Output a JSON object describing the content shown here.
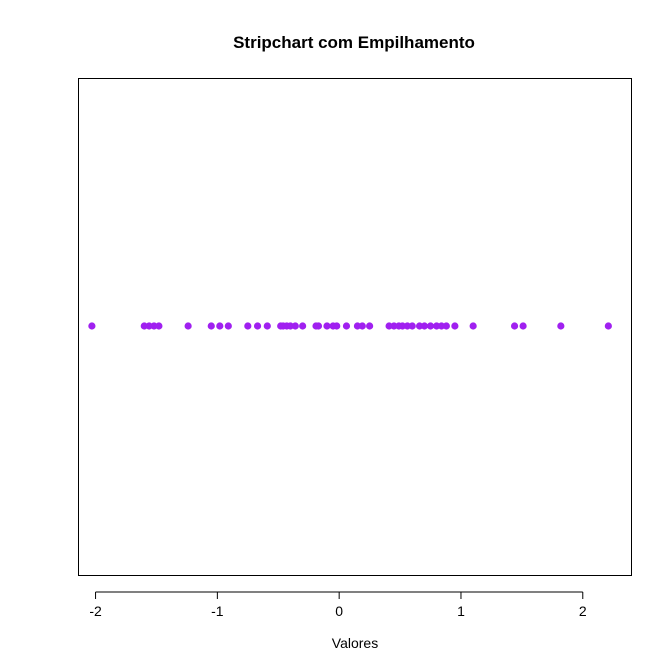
{
  "chart_data": {
    "type": "scatter",
    "title": "Stripchart com Empilhamento",
    "xlabel": "Valores",
    "ylabel": "",
    "xlim": [
      -2.14,
      2.4
    ],
    "x_ticks": [
      -2,
      -1,
      0,
      1,
      2
    ],
    "x_tick_labels": [
      "-2",
      "-1",
      "0",
      "1",
      "2"
    ],
    "grid": false,
    "legend": "none",
    "point_color": "#A020F0",
    "values": [
      -2.03,
      -1.6,
      -1.56,
      -1.52,
      -1.48,
      -1.24,
      -1.05,
      -0.98,
      -0.91,
      -0.75,
      -0.67,
      -0.59,
      -0.48,
      -0.46,
      -0.43,
      -0.4,
      -0.36,
      -0.3,
      -0.19,
      -0.17,
      -0.1,
      -0.05,
      -0.02,
      0.06,
      0.15,
      0.19,
      0.25,
      0.41,
      0.45,
      0.49,
      0.52,
      0.56,
      0.6,
      0.66,
      0.7,
      0.75,
      0.8,
      0.84,
      0.88,
      0.95,
      1.1,
      1.44,
      1.51,
      1.82,
      2.21
    ]
  }
}
